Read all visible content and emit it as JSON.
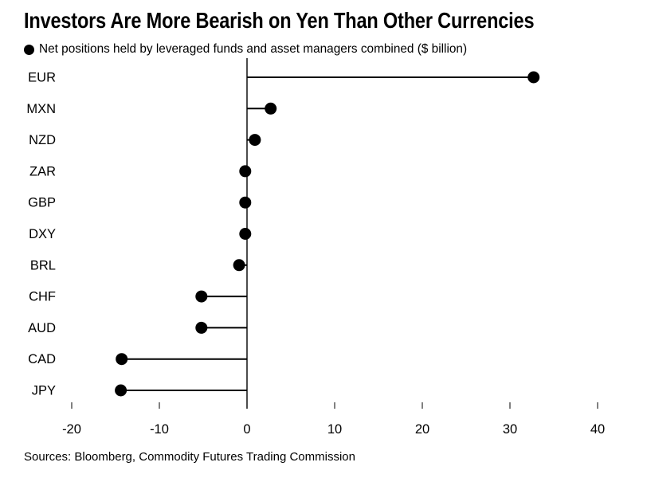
{
  "chart_data": {
    "type": "bar",
    "style": "lollipop-horizontal",
    "title": "Investors Are More Bearish on Yen Than Other Currencies",
    "legend_label": "Net positions held by leveraged funds and asset managers combined ($ billion)",
    "source": "Sources: Bloomberg, Commodity Futures Trading Commission",
    "categories": [
      "EUR",
      "MXN",
      "NZD",
      "ZAR",
      "GBP",
      "DXY",
      "BRL",
      "CHF",
      "AUD",
      "CAD",
      "JPY"
    ],
    "values": [
      32.7,
      2.7,
      0.9,
      -0.2,
      -0.2,
      -0.2,
      -0.9,
      -5.2,
      -5.2,
      -14.3,
      -14.4
    ],
    "xlabel": "",
    "ylabel": "",
    "xlim": [
      -20,
      40
    ],
    "xticks": [
      -20,
      -10,
      0,
      10,
      20,
      30,
      40
    ],
    "grid": false,
    "legend_position": "top-left",
    "marker_color": "#000000",
    "text_color": "#000000",
    "background_color": "#ffffff"
  }
}
